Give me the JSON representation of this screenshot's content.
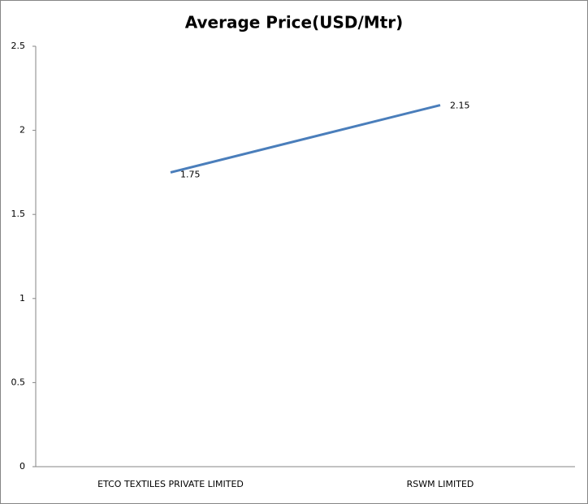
{
  "chart_data": {
    "type": "line",
    "title": "Average Price(USD/Mtr)",
    "categories": [
      "ETCO TEXTILES  PRIVATE  LIMITED",
      "RSWM LIMITED"
    ],
    "series": [
      {
        "name": "Average Price(USD/Mtr)",
        "color": "#4a7ebb",
        "values": [
          1.75,
          2.15
        ]
      }
    ],
    "ylim": [
      0,
      2.5
    ],
    "yticks": [
      0,
      0.5,
      1,
      1.5,
      2,
      2.5
    ],
    "grid": false,
    "legend": false
  }
}
